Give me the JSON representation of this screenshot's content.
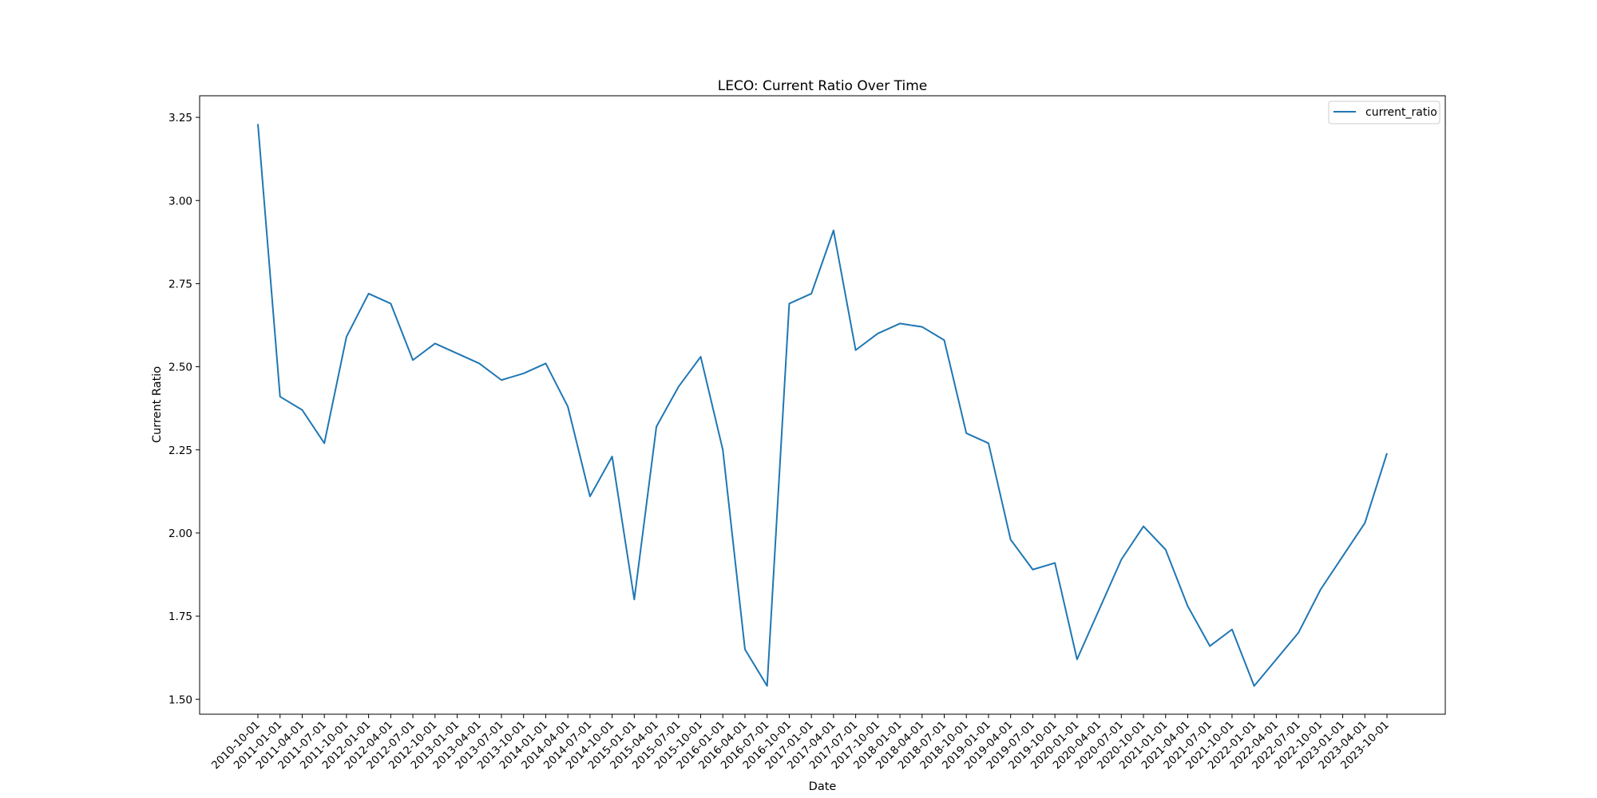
{
  "chart_data": {
    "type": "line",
    "title": "LECO: Current Ratio Over Time",
    "xlabel": "Date",
    "ylabel": "Current Ratio",
    "ylim": [
      1.455,
      3.315
    ],
    "y_ticks": [
      1.5,
      1.75,
      2.0,
      2.25,
      2.5,
      2.75,
      3.0,
      3.25
    ],
    "grid": false,
    "legend": "top-right",
    "categories": [
      "2010-10-01",
      "2011-01-01",
      "2011-04-01",
      "2011-07-01",
      "2011-10-01",
      "2012-01-01",
      "2012-04-01",
      "2012-07-01",
      "2012-10-01",
      "2013-01-01",
      "2013-04-01",
      "2013-07-01",
      "2013-10-01",
      "2014-01-01",
      "2014-04-01",
      "2014-07-01",
      "2014-10-01",
      "2015-01-01",
      "2015-04-01",
      "2015-07-01",
      "2015-10-01",
      "2016-01-01",
      "2016-04-01",
      "2016-07-01",
      "2016-10-01",
      "2017-01-01",
      "2017-04-01",
      "2017-07-01",
      "2017-10-01",
      "2018-01-01",
      "2018-04-01",
      "2018-07-01",
      "2018-10-01",
      "2019-01-01",
      "2019-04-01",
      "2019-07-01",
      "2019-10-01",
      "2020-01-01",
      "2020-04-01",
      "2020-07-01",
      "2020-10-01",
      "2021-01-01",
      "2021-04-01",
      "2021-07-01",
      "2021-10-01",
      "2022-01-01",
      "2022-04-01",
      "2022-07-01",
      "2022-10-01",
      "2023-01-01",
      "2023-04-01",
      "2023-10-01"
    ],
    "series": [
      {
        "name": "current_ratio",
        "color": "#1f77b4",
        "values": [
          3.23,
          2.41,
          2.37,
          2.27,
          2.59,
          2.72,
          2.69,
          2.52,
          2.57,
          2.54,
          2.51,
          2.46,
          2.48,
          2.51,
          2.38,
          2.11,
          2.23,
          1.8,
          2.32,
          2.44,
          2.53,
          2.25,
          1.65,
          1.54,
          2.69,
          2.72,
          2.91,
          2.55,
          2.6,
          2.63,
          2.62,
          2.58,
          2.3,
          2.27,
          1.98,
          1.89,
          1.91,
          1.62,
          1.77,
          1.92,
          2.02,
          1.95,
          1.78,
          1.66,
          1.71,
          1.54,
          1.62,
          1.7,
          1.83,
          1.93,
          2.03,
          2.24
        ]
      }
    ]
  }
}
